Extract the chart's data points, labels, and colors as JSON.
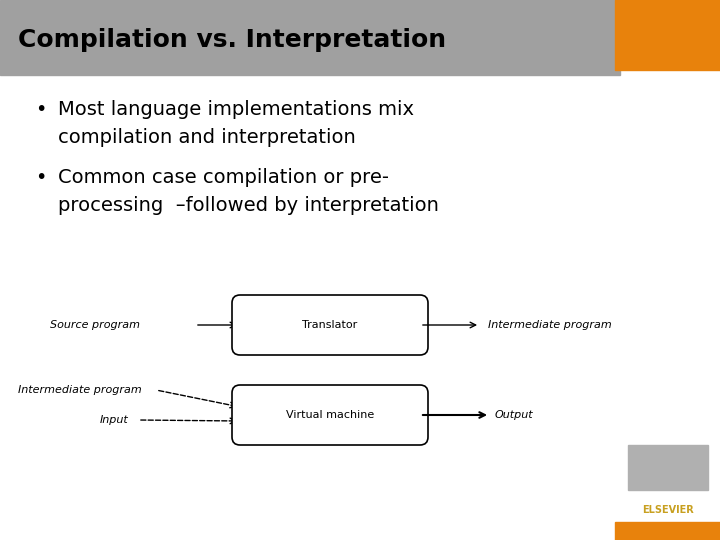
{
  "title": "Compilation vs. Interpretation",
  "title_bg_color": "#a0a0a0",
  "title_text_color": "#000000",
  "slide_bg_color": "#e8e8e8",
  "content_bg_color": "#ffffff",
  "orange_color": "#e8820c",
  "bullet1_line1": "Most language implementations mix",
  "bullet1_line2": "compilation and interpretation",
  "bullet2_line1": "Common case compilation or pre-",
  "bullet2_line2": "processing  –followed by interpretation",
  "diagram": {
    "row1": {
      "source_label": "Source program",
      "box_label": "Translator",
      "inter_label": "Intermediate program"
    },
    "row2": {
      "inter_label": "Intermediate program",
      "input_label": "Input",
      "box_label": "Virtual machine",
      "output_label": "Output"
    }
  },
  "elsevier_text": "ELSEVIER",
  "elsevier_color": "#c8a020"
}
